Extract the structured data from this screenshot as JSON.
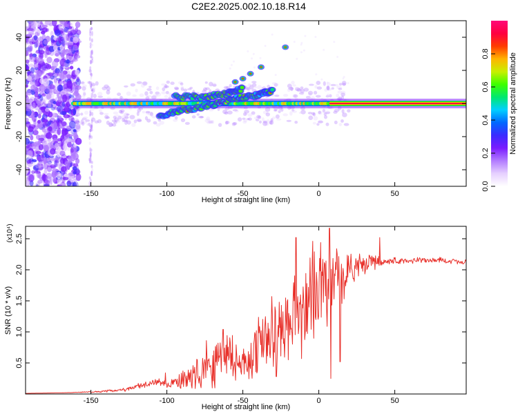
{
  "figure_title": "C2E2.2025.002.10.18.R14",
  "chart_data": [
    {
      "type": "heatmap",
      "xlabel": "Height of straight line (km)",
      "ylabel": "Frequency (Hz)",
      "xlim": [
        -193,
        97
      ],
      "ylim": [
        -50,
        50
      ],
      "x_ticks": [
        -150,
        -100,
        -50,
        0,
        50
      ],
      "y_ticks": [
        -40,
        -20,
        0,
        20,
        40
      ],
      "colorbar": {
        "label": "Normalized spectral amplitude",
        "range": [
          0,
          1
        ],
        "ticks": [
          0.0,
          0.2,
          0.4,
          0.6,
          0.8
        ],
        "tick_labels": [
          "0.0",
          "0.2",
          "0.4",
          "0.6",
          "0.8"
        ],
        "colors": [
          "#ffffff",
          "#e6d0ff",
          "#b27cff",
          "#7a1cff",
          "#3b2bff",
          "#0068ff",
          "#00d0ff",
          "#00e870",
          "#3cff00",
          "#c8f000",
          "#ffb400",
          "#ff3c00",
          "#ff0040",
          "#ff0a78"
        ]
      },
      "main_band": {
        "frequency": 0,
        "x_start": -162,
        "x_end": 97,
        "strong_from": 7
      },
      "branches": [
        {
          "x": [
            -105,
            -90,
            -70,
            -55,
            -40,
            -30
          ],
          "y": [
            -8,
            -4,
            -1,
            3,
            5,
            8
          ]
        },
        {
          "x": [
            -95,
            -75,
            -60,
            -50
          ],
          "y": [
            4,
            4,
            6,
            9
          ]
        }
      ],
      "isolated_points": [
        {
          "x": -55,
          "y": 13
        },
        {
          "x": -50,
          "y": 15
        },
        {
          "x": -45,
          "y": 18
        },
        {
          "x": -38,
          "y": 22
        },
        {
          "x": -22,
          "y": 34
        }
      ],
      "noise_region": {
        "x_start": -193,
        "x_end": -160,
        "secondary_x": -150
      }
    },
    {
      "type": "line",
      "xlabel": "Height of straight line (km)",
      "ylabel": "SNR (10 * v/v)",
      "y_exponent": "(x10⁴)",
      "xlim": [
        -193,
        97
      ],
      "ylim": [
        0,
        2.7
      ],
      "x_ticks": [
        -150,
        -100,
        -50,
        0,
        50
      ],
      "y_ticks": [
        0.5,
        1.0,
        1.5,
        2.0,
        2.5
      ],
      "y_tick_labels": [
        "0.5",
        "1.0",
        "1.5",
        "2.0",
        "2.5"
      ],
      "color": "#e8302a",
      "x": [
        -193,
        -170,
        -150,
        -135,
        -125,
        -120,
        -112,
        -105,
        -100,
        -95,
        -85,
        -80,
        -75,
        -70,
        -65,
        -60,
        -55,
        -50,
        -45,
        -40,
        -35,
        -30,
        -25,
        -20,
        -15,
        -10,
        -5,
        0,
        5,
        10,
        15,
        20,
        25,
        30,
        35,
        40,
        45,
        50,
        60,
        70,
        80,
        90,
        97
      ],
      "values": [
        0.01,
        0.02,
        0.03,
        0.05,
        0.08,
        0.12,
        0.15,
        0.2,
        0.15,
        0.18,
        0.25,
        0.3,
        0.4,
        0.5,
        0.6,
        0.65,
        0.55,
        0.5,
        0.6,
        0.75,
        0.85,
        1.0,
        1.05,
        1.1,
        1.3,
        1.45,
        1.55,
        1.65,
        1.75,
        1.8,
        1.9,
        2.0,
        2.05,
        2.1,
        2.12,
        2.13,
        2.15,
        2.15,
        2.15,
        2.15,
        2.15,
        2.14,
        2.13
      ],
      "noise": [
        0.0,
        0.0,
        0.01,
        0.02,
        0.03,
        0.04,
        0.05,
        0.06,
        0.05,
        0.08,
        0.15,
        0.25,
        0.3,
        0.35,
        0.35,
        0.35,
        0.3,
        0.3,
        0.35,
        0.4,
        0.45,
        0.5,
        0.55,
        0.6,
        0.7,
        0.65,
        0.6,
        0.6,
        0.55,
        0.45,
        0.35,
        0.25,
        0.2,
        0.15,
        0.1,
        0.08,
        0.06,
        0.05,
        0.04,
        0.04,
        0.04,
        0.04,
        0.04
      ],
      "peaks": [
        {
          "x": -101,
          "y": 0.34
        },
        {
          "x": -74,
          "y": 0.86
        },
        {
          "x": -63,
          "y": 1.04
        },
        {
          "x": -31,
          "y": 1.57
        },
        {
          "x": -15,
          "y": 2.52
        },
        {
          "x": -4,
          "y": 2.46
        },
        {
          "x": 7,
          "y": 2.67
        },
        {
          "x": 40,
          "y": 2.52
        }
      ],
      "dips": [
        {
          "x": 8,
          "y": 0.25
        },
        {
          "x": 14,
          "y": 0.52
        },
        {
          "x": -20,
          "y": 0.55
        },
        {
          "x": -28,
          "y": 0.28
        }
      ]
    }
  ]
}
